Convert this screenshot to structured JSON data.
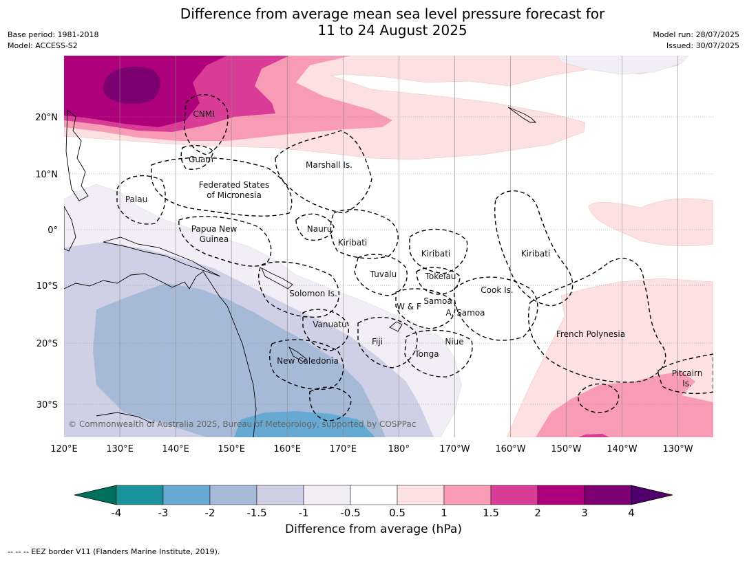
{
  "header": {
    "title_line1": "Difference from average mean sea level pressure forecast for",
    "title_line2": "11 to 24 August 2025",
    "base_period": "Base period: 1981-2018",
    "model": "Model: ACCESS-S2",
    "model_run": "Model run: 28/07/2025",
    "issued": "Issued: 30/07/2025"
  },
  "map": {
    "lon_ticks": [
      "120°E",
      "130°E",
      "140°E",
      "150°E",
      "160°E",
      "170°E",
      "180°",
      "170°W",
      "160°W",
      "150°W",
      "140°W",
      "130°W"
    ],
    "lat_ticks": [
      "20°N",
      "10°N",
      "0°",
      "10°S",
      "20°S",
      "30°S"
    ],
    "labels": {
      "cnmi": "CNMI",
      "guam": "Guam",
      "marshall": "Marshall Is.",
      "fsm1": "Federated States",
      "fsm2": "of Micronesia",
      "palau": "Palau",
      "png1": "Papua New",
      "png2": "Guinea",
      "nauru": "Nauru",
      "kiribati_w": "Kiribati",
      "kiribati_c": "Kiribati",
      "kiribati_e": "Kiribati",
      "tuvalu": "Tuvalu",
      "tokelau": "Tokelau",
      "cook": "Cook Is.",
      "solomon": "Solomon Is.",
      "wf": "W & F",
      "samoa": "Samoa",
      "asamoa": "A. Samoa",
      "vanuatu": "Vanuatu",
      "fiji": "Fiji",
      "niue": "Niue",
      "tonga": "Tonga",
      "fp": "French Polynesia",
      "pitcairn1": "Pitcairn",
      "pitcairn2": "Is.",
      "newcal": "New Caledonia"
    },
    "copyright": "© Commonwealth of Australia 2025, Bureau of Meteorology, supported by COSPPac"
  },
  "colorbar": {
    "title": "Difference from average (hPa)",
    "ticks": [
      "-4",
      "-3",
      "-2",
      "-1.5",
      "-1",
      "-0.5",
      "0.5",
      "1",
      "1.5",
      "2",
      "3",
      "4"
    ],
    "colors": {
      "below_min": "#00705e",
      "c1": "#1b929a",
      "c2": "#66aad4",
      "c3": "#a6bad8",
      "c4": "#cfd0e5",
      "c5": "#f2eef5",
      "c6": "#ffffff",
      "c7": "#fde0e0",
      "c8": "#f89cb6",
      "c9": "#d93c96",
      "c10": "#ae007a",
      "c11": "#7c0072",
      "above_max": "#4f006b"
    }
  },
  "footnote": "--  --  -- EEZ border V11 (Flanders Marine Institute, 2019)."
}
